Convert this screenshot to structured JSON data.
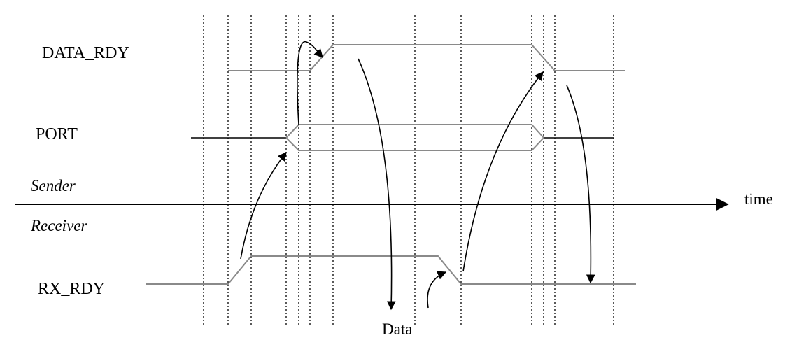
{
  "signals": {
    "data_rdy": "DATA_RDY",
    "port": "PORT",
    "rx_rdy": "RX_RDY"
  },
  "sections": {
    "sender": "Sender",
    "receiver": "Receiver"
  },
  "axis": {
    "time": "time"
  },
  "annotations": {
    "data": "Data"
  }
}
